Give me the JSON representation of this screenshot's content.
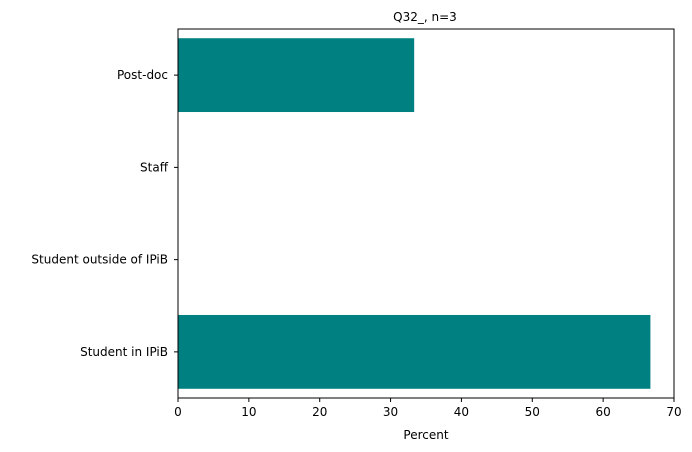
{
  "chart_data": {
    "type": "bar",
    "orientation": "horizontal",
    "title": "Q32_, n=3",
    "xlabel": "Percent",
    "ylabel": "",
    "categories": [
      "Post-doc",
      "Staff",
      "Student outside of IPiB",
      "Student in IPiB"
    ],
    "values": [
      33.33,
      0,
      0,
      66.67
    ],
    "xlim": [
      0,
      70
    ],
    "xticks": [
      0,
      10,
      20,
      30,
      40,
      50,
      60,
      70
    ],
    "bar_color": "#008080",
    "grid": false,
    "legend": "none"
  }
}
